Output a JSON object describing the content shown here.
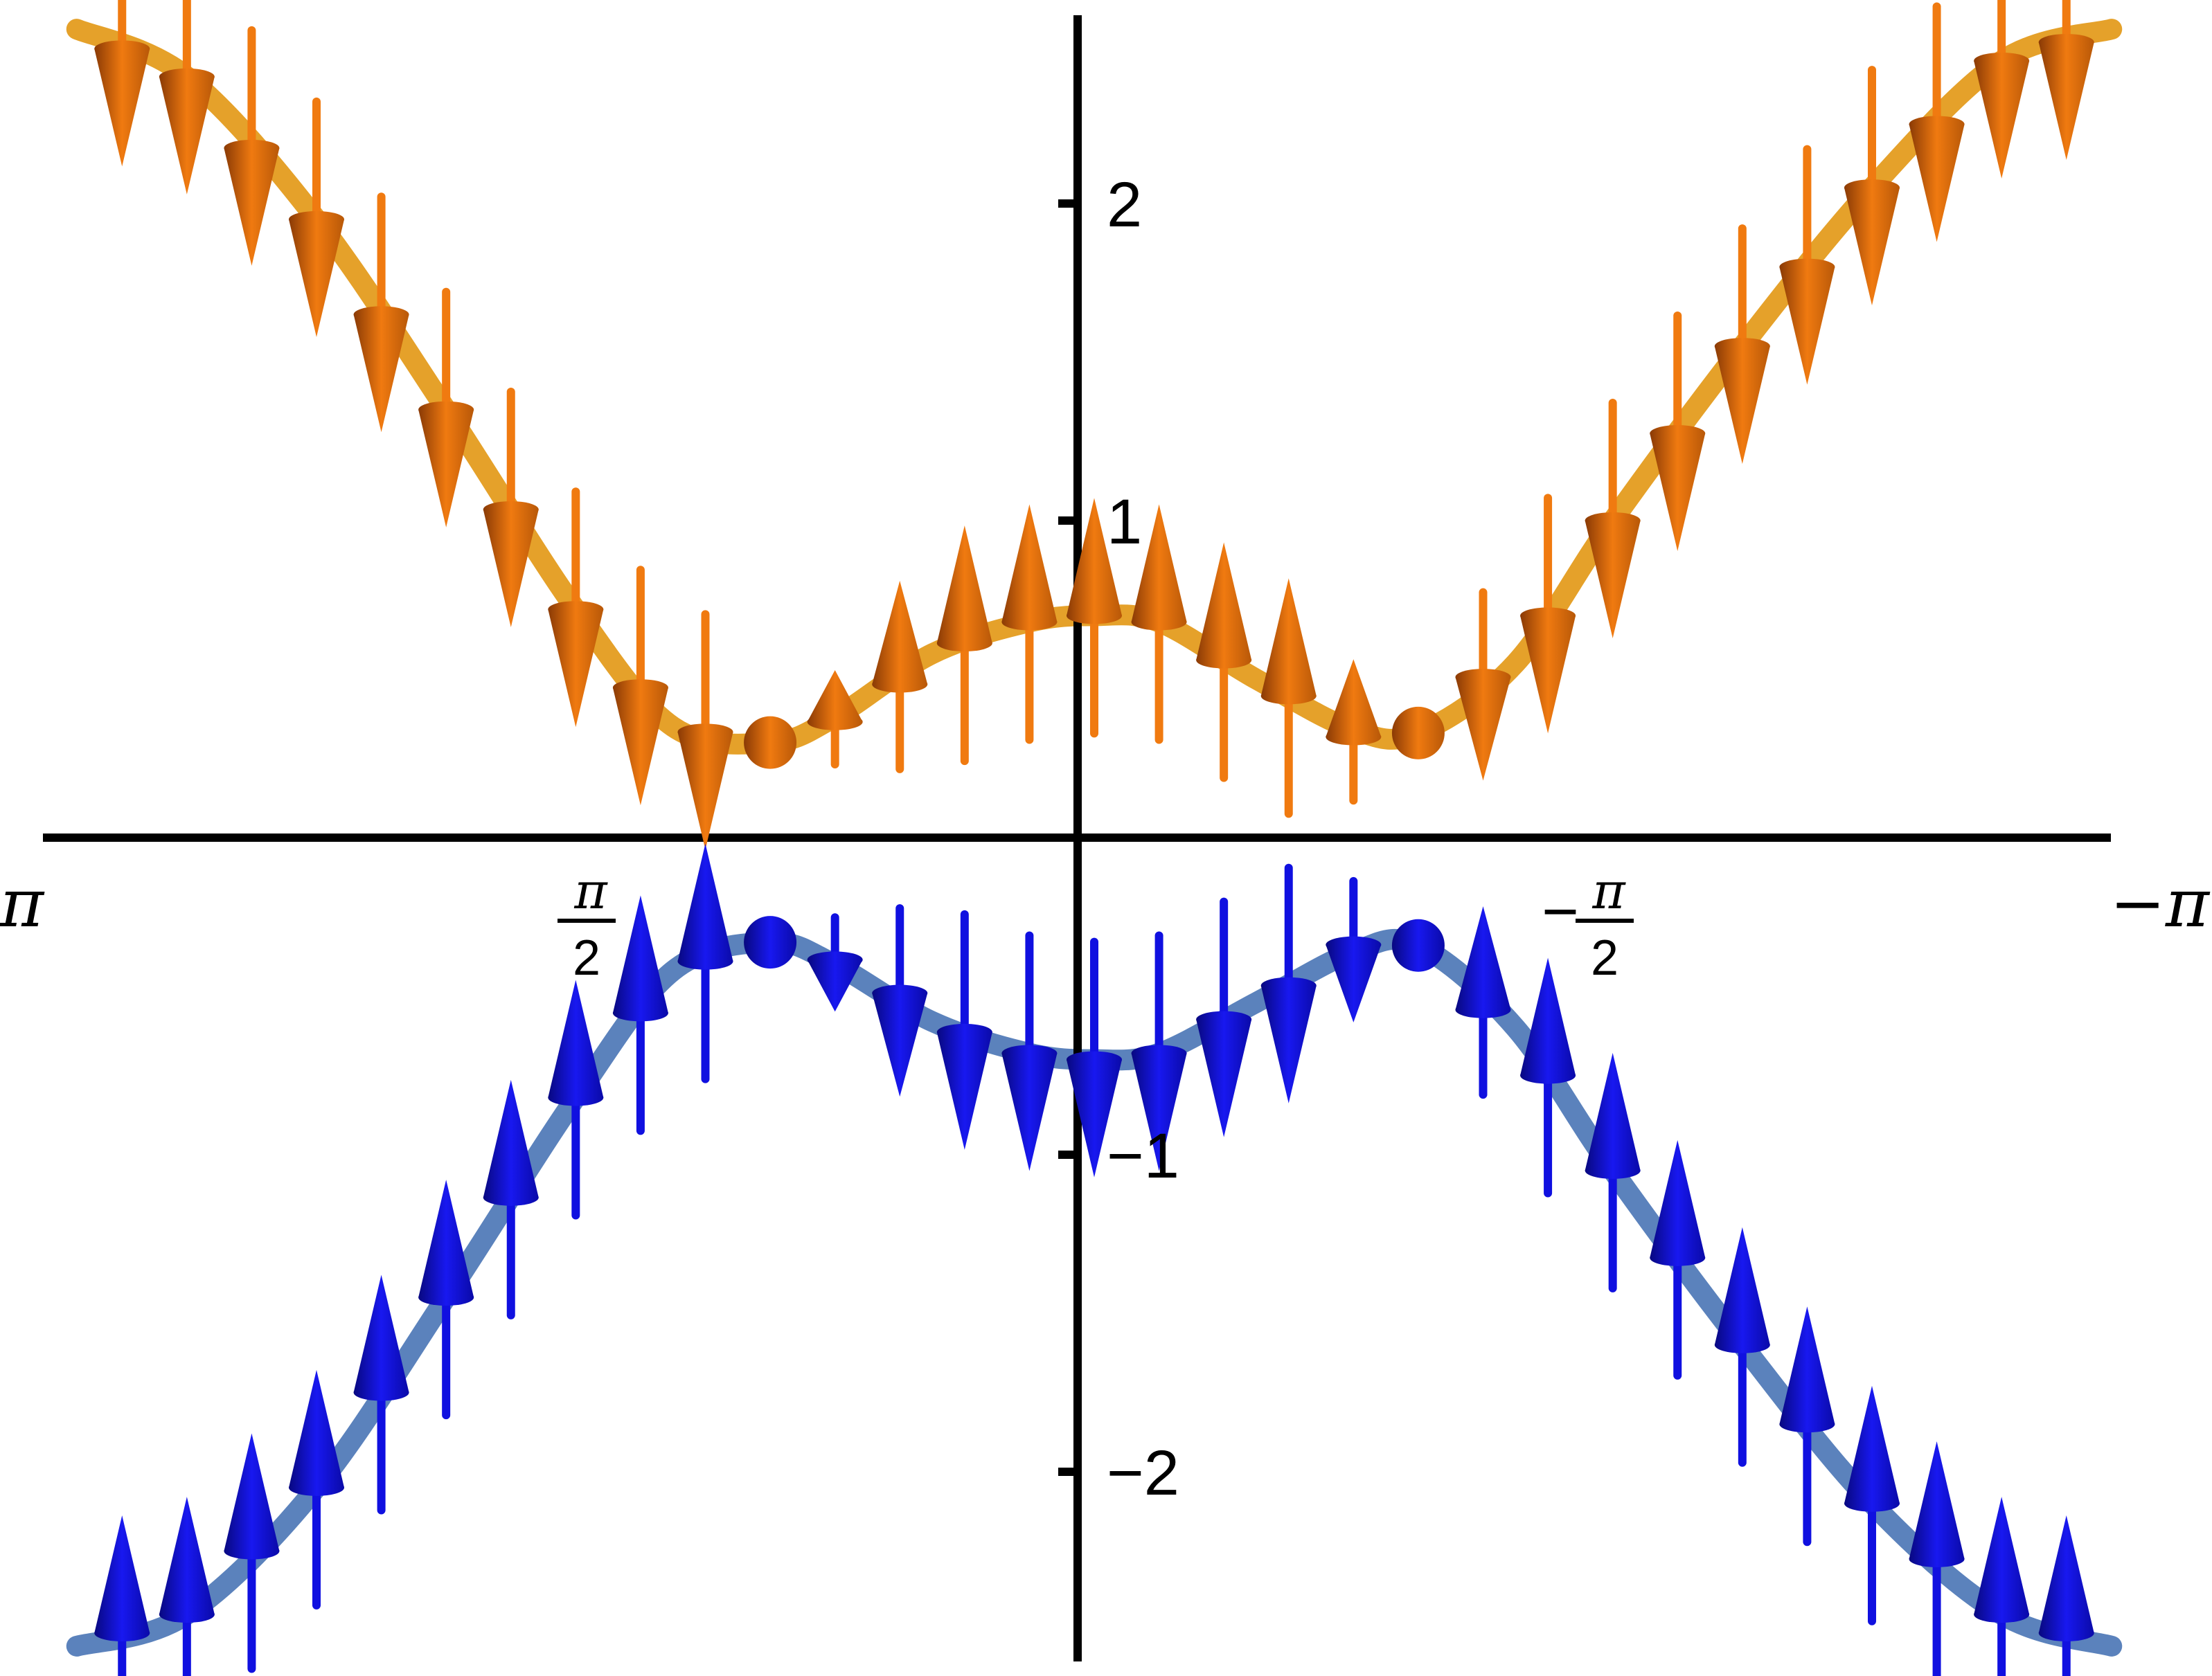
{
  "chart_data": {
    "type": "line",
    "title": "",
    "xlabel": "",
    "ylabel": "",
    "xlim": [
      3.1416,
      -3.1416
    ],
    "ylim": [
      -2.6,
      2.6
    ],
    "x_axis_direction": "reversed",
    "grid": false,
    "x_ticks": [
      {
        "value": 3.1416,
        "label": "π"
      },
      {
        "value": 1.5708,
        "label_num": "π",
        "label_den": "2",
        "label_sign": ""
      },
      {
        "value": -1.5708,
        "label_num": "π",
        "label_den": "2",
        "label_sign": "−"
      },
      {
        "value": -3.1416,
        "label": "−π"
      }
    ],
    "y_ticks": [
      {
        "value": 2,
        "label": "2"
      },
      {
        "value": 1,
        "label": "1"
      },
      {
        "value": -1,
        "label": "−1"
      },
      {
        "value": -2,
        "label": "−2"
      }
    ],
    "series": [
      {
        "band": "upper",
        "color": "#E5A12A",
        "arrow_color": "#F07A10",
        "curve": {
          "x": [
            3.14,
            2.8,
            2.4,
            2.0,
            1.6,
            1.3,
            1.0,
            0.8,
            0.5,
            0.2,
            0.0,
            -0.2,
            -0.5,
            -0.8,
            -1.0,
            -1.3,
            -1.6,
            -2.0,
            -2.4,
            -2.8,
            -3.14
          ],
          "y": [
            2.55,
            2.4,
            1.95,
            1.35,
            0.72,
            0.35,
            0.3,
            0.38,
            0.58,
            0.68,
            0.7,
            0.68,
            0.5,
            0.34,
            0.33,
            0.55,
            1.0,
            1.55,
            2.05,
            2.45,
            2.55
          ]
        },
        "spin_arrows": [
          {
            "x": 3.0,
            "spin": -1
          },
          {
            "x": 2.8,
            "spin": -1
          },
          {
            "x": 2.6,
            "spin": -1
          },
          {
            "x": 2.4,
            "spin": -1
          },
          {
            "x": 2.2,
            "spin": -1
          },
          {
            "x": 2.0,
            "spin": -1
          },
          {
            "x": 1.8,
            "spin": -1
          },
          {
            "x": 1.6,
            "spin": -1
          },
          {
            "x": 1.4,
            "spin": -1
          },
          {
            "x": 1.2,
            "spin": -1
          },
          {
            "x": 1.0,
            "spin": -0.2
          },
          {
            "x": 0.8,
            "spin": 0.4
          },
          {
            "x": 0.6,
            "spin": 0.8
          },
          {
            "x": 0.4,
            "spin": 1
          },
          {
            "x": 0.2,
            "spin": 1
          },
          {
            "x": 0.0,
            "spin": 1
          },
          {
            "x": -0.2,
            "spin": 1
          },
          {
            "x": -0.4,
            "spin": 1
          },
          {
            "x": -0.6,
            "spin": 1
          },
          {
            "x": -0.8,
            "spin": 0.6
          },
          {
            "x": -1.0,
            "spin": 0.1
          },
          {
            "x": -1.2,
            "spin": -0.8
          },
          {
            "x": -1.4,
            "spin": -1
          },
          {
            "x": -1.6,
            "spin": -1
          },
          {
            "x": -1.8,
            "spin": -1
          },
          {
            "x": -2.0,
            "spin": -1
          },
          {
            "x": -2.2,
            "spin": -1
          },
          {
            "x": -2.4,
            "spin": -1
          },
          {
            "x": -2.6,
            "spin": -1
          },
          {
            "x": -2.8,
            "spin": -1
          },
          {
            "x": -3.0,
            "spin": -1
          }
        ]
      },
      {
        "band": "lower",
        "color": "#5B82BC",
        "arrow_color": "#1010E0",
        "curve": {
          "x": [
            3.14,
            2.8,
            2.4,
            2.0,
            1.6,
            1.3,
            1.0,
            0.8,
            0.5,
            0.2,
            0.0,
            -0.2,
            -0.5,
            -0.8,
            -1.0,
            -1.3,
            -1.6,
            -2.0,
            -2.4,
            -2.8,
            -3.14
          ],
          "y": [
            -2.55,
            -2.45,
            -2.05,
            -1.45,
            -0.82,
            -0.42,
            -0.33,
            -0.4,
            -0.58,
            -0.68,
            -0.7,
            -0.68,
            -0.52,
            -0.36,
            -0.34,
            -0.6,
            -1.05,
            -1.6,
            -2.1,
            -2.45,
            -2.55
          ]
        },
        "spin_arrows": [
          {
            "x": 3.0,
            "spin": 1
          },
          {
            "x": 2.8,
            "spin": 1
          },
          {
            "x": 2.6,
            "spin": 1
          },
          {
            "x": 2.4,
            "spin": 1
          },
          {
            "x": 2.2,
            "spin": 1
          },
          {
            "x": 2.0,
            "spin": 1
          },
          {
            "x": 1.8,
            "spin": 1
          },
          {
            "x": 1.6,
            "spin": 1
          },
          {
            "x": 1.4,
            "spin": 1
          },
          {
            "x": 1.2,
            "spin": 1
          },
          {
            "x": 1.0,
            "spin": 0.2
          },
          {
            "x": 0.8,
            "spin": -0.4
          },
          {
            "x": 0.6,
            "spin": -0.8
          },
          {
            "x": 0.4,
            "spin": -1
          },
          {
            "x": 0.2,
            "spin": -1
          },
          {
            "x": 0.0,
            "spin": -1
          },
          {
            "x": -0.2,
            "spin": -1
          },
          {
            "x": -0.4,
            "spin": -1
          },
          {
            "x": -0.6,
            "spin": -1
          },
          {
            "x": -0.8,
            "spin": -0.6
          },
          {
            "x": -1.0,
            "spin": -0.1
          },
          {
            "x": -1.2,
            "spin": 0.8
          },
          {
            "x": -1.4,
            "spin": 1
          },
          {
            "x": -1.6,
            "spin": 1
          },
          {
            "x": -1.8,
            "spin": 1
          },
          {
            "x": -2.0,
            "spin": 1
          },
          {
            "x": -2.2,
            "spin": 1
          },
          {
            "x": -2.4,
            "spin": 1
          },
          {
            "x": -2.6,
            "spin": 1
          },
          {
            "x": -2.8,
            "spin": 1
          },
          {
            "x": -3.0,
            "spin": 1
          }
        ]
      }
    ]
  }
}
